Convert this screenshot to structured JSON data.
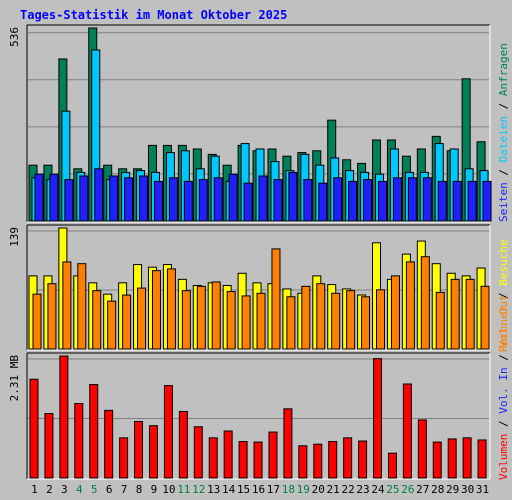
{
  "title": "Tages-Statistik im Monat Oktober 2025",
  "colors": {
    "background": "#c0c0c0",
    "title": "#0000ff",
    "anfragen": "#00805a",
    "dateien": "#00c8ff",
    "seiten": "#2020ff",
    "besuche": "#ffff00",
    "rechner": "#ff8000",
    "volumen": "#ff0000",
    "weekend_label": "#008040",
    "weekday_label": "#000000"
  },
  "chart_data": [
    {
      "type": "bar",
      "panel": "top",
      "y_max_label": "536",
      "ylim": [
        0,
        536
      ],
      "categories": [
        "1",
        "2",
        "3",
        "4",
        "5",
        "6",
        "7",
        "8",
        "9",
        "10",
        "11",
        "12",
        "13",
        "14",
        "15",
        "16",
        "17",
        "18",
        "19",
        "20",
        "21",
        "22",
        "23",
        "24",
        "25",
        "26",
        "27",
        "28",
        "29",
        "30",
        "31"
      ],
      "series": [
        {
          "name": "Anfragen",
          "values": [
            155,
            155,
            450,
            145,
            536,
            155,
            145,
            145,
            210,
            210,
            210,
            200,
            185,
            155,
            210,
            195,
            200,
            180,
            190,
            195,
            280,
            170,
            160,
            225,
            225,
            180,
            200,
            235,
            195,
            395,
            220
          ]
        },
        {
          "name": "Dateien",
          "values": [
            120,
            115,
            305,
            135,
            475,
            115,
            135,
            140,
            135,
            190,
            195,
            145,
            180,
            110,
            215,
            200,
            165,
            140,
            185,
            155,
            175,
            140,
            135,
            130,
            200,
            135,
            135,
            215,
            200,
            145,
            140
          ]
        },
        {
          "name": "Seiten",
          "values": [
            130,
            130,
            115,
            125,
            145,
            125,
            120,
            125,
            110,
            120,
            110,
            115,
            120,
            130,
            105,
            125,
            115,
            135,
            115,
            105,
            120,
            110,
            115,
            110,
            120,
            120,
            120,
            110,
            110,
            110,
            110
          ]
        }
      ],
      "y_axis_title_parts": [
        "Anfragen",
        "Dateien",
        "Seiten"
      ]
    },
    {
      "type": "bar",
      "panel": "middle",
      "y_max_label": "139",
      "ylim": [
        0,
        139
      ],
      "categories": [
        "1",
        "2",
        "3",
        "4",
        "5",
        "6",
        "7",
        "8",
        "9",
        "10",
        "11",
        "12",
        "13",
        "14",
        "15",
        "16",
        "17",
        "18",
        "19",
        "20",
        "21",
        "22",
        "23",
        "24",
        "25",
        "26",
        "27",
        "28",
        "29",
        "30",
        "31"
      ],
      "series": [
        {
          "name": "Besuche",
          "values": [
            84,
            84,
            139,
            84,
            76,
            63,
            76,
            97,
            94,
            97,
            80,
            73,
            76,
            73,
            87,
            76,
            75,
            69,
            64,
            84,
            74,
            69,
            62,
            122,
            80,
            109,
            124,
            98,
            87,
            84,
            93
          ]
        },
        {
          "name": "Rechner",
          "values": [
            63,
            75,
            100,
            98,
            67,
            55,
            62,
            70,
            90,
            92,
            67,
            72,
            77,
            66,
            61,
            64,
            115,
            60,
            72,
            75,
            64,
            67,
            60,
            68,
            84,
            100,
            106,
            65,
            80,
            80,
            72
          ]
        }
      ],
      "y_axis_title_parts": [
        "Besuche",
        "Rechner"
      ]
    },
    {
      "type": "bar",
      "panel": "bottom",
      "y_max_label": "2.31 MB",
      "ylim": [
        0,
        2.31
      ],
      "categories": [
        "1",
        "2",
        "3",
        "4",
        "5",
        "6",
        "7",
        "8",
        "9",
        "10",
        "11",
        "12",
        "13",
        "14",
        "15",
        "16",
        "17",
        "18",
        "19",
        "20",
        "21",
        "22",
        "23",
        "24",
        "25",
        "26",
        "27",
        "28",
        "29",
        "30",
        "31"
      ],
      "series": [
        {
          "name": "Volumen",
          "values": [
            1.87,
            1.22,
            2.31,
            1.41,
            1.77,
            1.28,
            0.76,
            1.07,
            0.99,
            1.75,
            1.26,
            0.97,
            0.76,
            0.89,
            0.69,
            0.68,
            0.87,
            1.31,
            0.61,
            0.64,
            0.69,
            0.76,
            0.7,
            2.26,
            0.47,
            1.78,
            1.1,
            0.68,
            0.74,
            0.76,
            0.72
          ]
        }
      ],
      "y_axis_title_parts": [
        "Vol. Out",
        "Vol. In",
        "Volumen"
      ]
    }
  ],
  "weekend_days": [
    4,
    5,
    11,
    12,
    18,
    19,
    25,
    26
  ]
}
